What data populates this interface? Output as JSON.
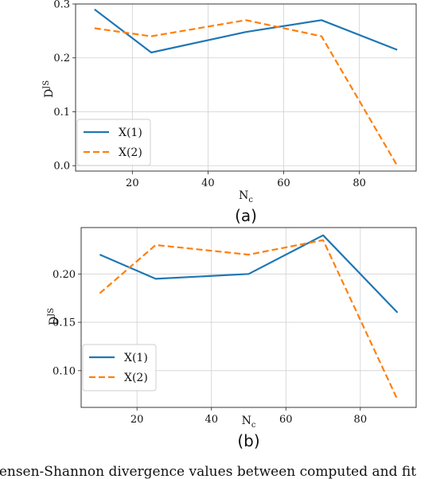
{
  "caption": "Jensen-Shannon divergence values between computed and fit",
  "chart_data": [
    {
      "type": "line",
      "panel_label": "(a)",
      "xlabel": "N",
      "xlabel_sub": "c",
      "ylabel": "D",
      "ylabel_sup": "JS",
      "xlim": [
        5,
        95
      ],
      "ylim": [
        -0.01,
        0.3
      ],
      "xticks": [
        20,
        40,
        60,
        80
      ],
      "yticks": [
        0.0,
        0.1,
        0.2,
        0.3
      ],
      "ytick_labels": [
        "0.0",
        "0.1",
        "0.2",
        "0.3"
      ],
      "grid": true,
      "legend_position": "lower-left",
      "x": [
        10,
        25,
        50,
        70,
        90
      ],
      "series": [
        {
          "name": "X(1)",
          "values": [
            0.29,
            0.21,
            0.248,
            0.27,
            0.215
          ],
          "color": "#1f77b4",
          "style": "solid"
        },
        {
          "name": "X(2)",
          "values": [
            0.255,
            0.24,
            0.27,
            0.24,
            0.0
          ],
          "color": "#ff7f0e",
          "style": "dashed"
        }
      ]
    },
    {
      "type": "line",
      "panel_label": "(b)",
      "xlabel": "N",
      "xlabel_sub": "c",
      "ylabel": "D",
      "ylabel_sup": "JS",
      "xlim": [
        5,
        95
      ],
      "ylim": [
        0.062,
        0.248
      ],
      "xticks": [
        20,
        40,
        60,
        80
      ],
      "yticks": [
        0.1,
        0.15,
        0.2
      ],
      "ytick_labels": [
        "0.10",
        "0.15",
        "0.20"
      ],
      "grid": true,
      "legend_position": "lower-left",
      "x": [
        10,
        25,
        50,
        70,
        90
      ],
      "series": [
        {
          "name": "X(1)",
          "values": [
            0.22,
            0.195,
            0.2,
            0.24,
            0.16
          ],
          "color": "#1f77b4",
          "style": "solid"
        },
        {
          "name": "X(2)",
          "values": [
            0.18,
            0.23,
            0.22,
            0.235,
            0.07
          ],
          "color": "#ff7f0e",
          "style": "dashed"
        }
      ]
    }
  ]
}
